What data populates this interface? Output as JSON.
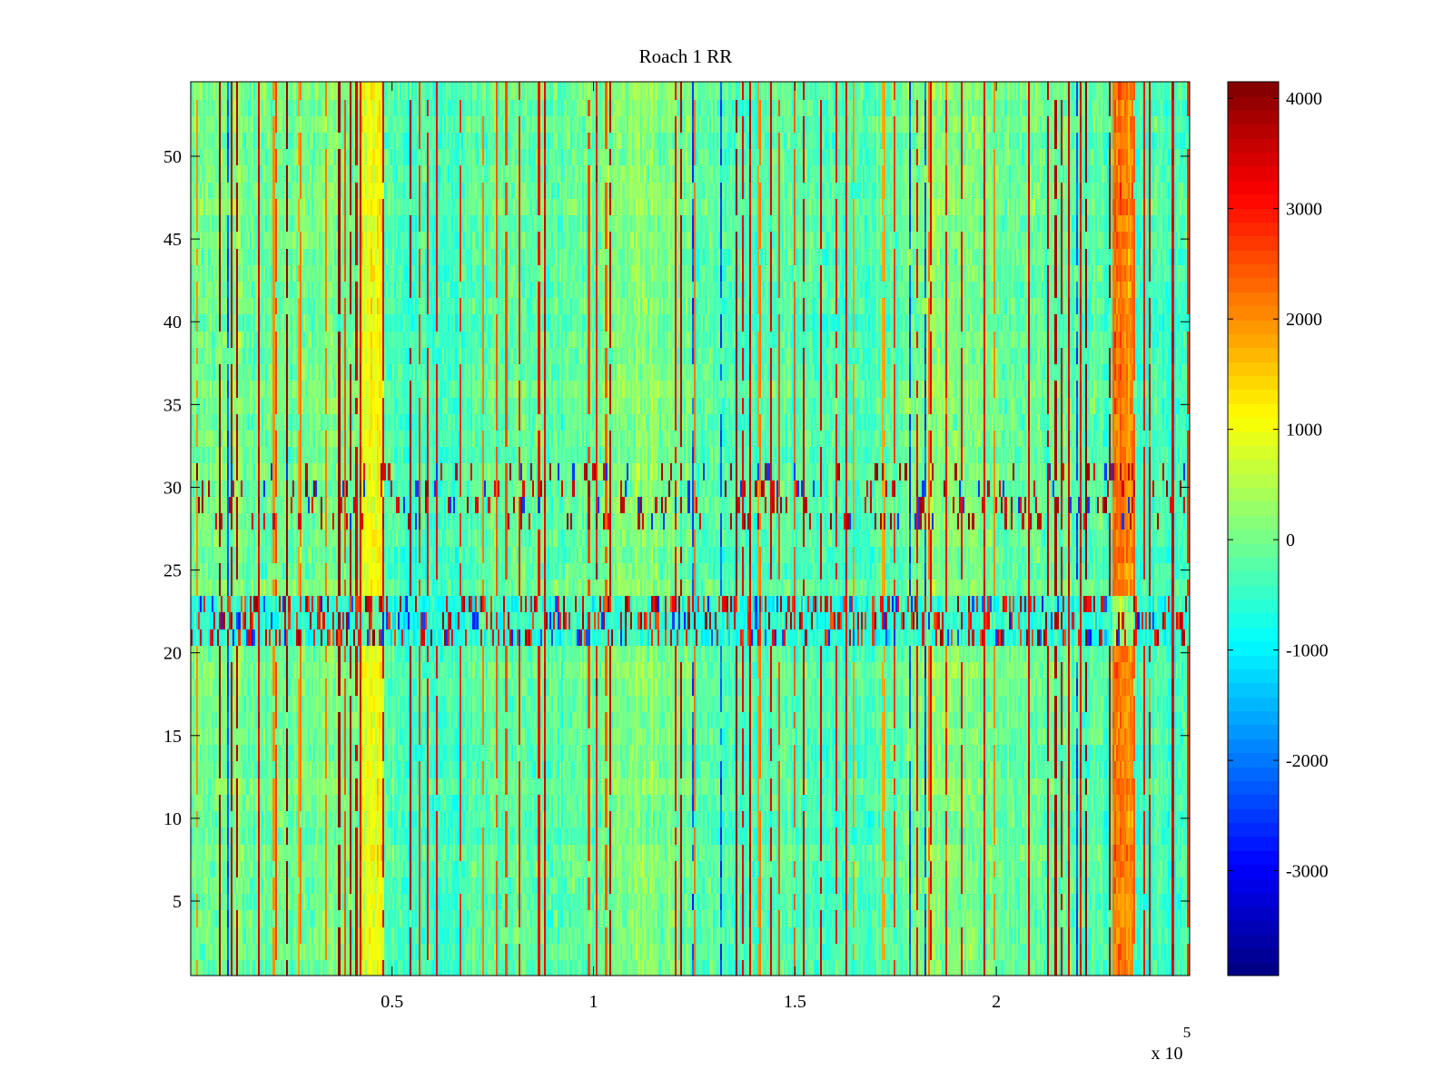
{
  "chart_data": {
    "type": "heatmap",
    "title": "Roach 1 RR",
    "xlabel": "",
    "ylabel": "",
    "x_exponent_label": "x 10",
    "x_exponent": "5",
    "xlim": [
      0,
      2.48
    ],
    "ylim": [
      0.5,
      54.5
    ],
    "x_ticks": [
      {
        "value": 0.5,
        "label": "0.5"
      },
      {
        "value": 1,
        "label": "1"
      },
      {
        "value": 1.5,
        "label": "1.5"
      },
      {
        "value": 2,
        "label": "2"
      }
    ],
    "y_ticks": [
      {
        "value": 5,
        "label": "5"
      },
      {
        "value": 10,
        "label": "10"
      },
      {
        "value": 15,
        "label": "15"
      },
      {
        "value": 20,
        "label": "20"
      },
      {
        "value": 25,
        "label": "25"
      },
      {
        "value": 30,
        "label": "30"
      },
      {
        "value": 35,
        "label": "35"
      },
      {
        "value": 40,
        "label": "40"
      },
      {
        "value": 45,
        "label": "45"
      },
      {
        "value": 50,
        "label": "50"
      }
    ],
    "colorbar": {
      "colormap": "jet",
      "clim": [
        -3950,
        4150
      ],
      "ticks": [
        {
          "value": 4000,
          "label": "4000"
        },
        {
          "value": 3000,
          "label": "3000"
        },
        {
          "value": 2000,
          "label": "2000"
        },
        {
          "value": 1000,
          "label": "1000"
        },
        {
          "value": 0,
          "label": "0"
        },
        {
          "value": -1000,
          "label": "-1000"
        },
        {
          "value": -2000,
          "label": "-2000"
        },
        {
          "value": -3000,
          "label": "-3000"
        }
      ]
    },
    "rows": 54,
    "background_value": -150,
    "strong_vertical_lines_x": [
      0.17,
      0.42,
      0.88,
      1.39,
      1.63,
      1.97,
      2.08,
      2.18,
      2.21,
      2.44
    ],
    "warm_bands": [
      {
        "x_start": 0.42,
        "x_end": 0.48,
        "value": 1000
      },
      {
        "x_start": 2.29,
        "x_end": 2.34,
        "value": 2100
      }
    ],
    "anomalous_rows": [
      {
        "row_start": 21,
        "row_end": 23,
        "baseline": -600,
        "spikes": "many"
      },
      {
        "row_start": 28,
        "row_end": 31,
        "baseline": 0,
        "spikes": "many"
      }
    ]
  }
}
